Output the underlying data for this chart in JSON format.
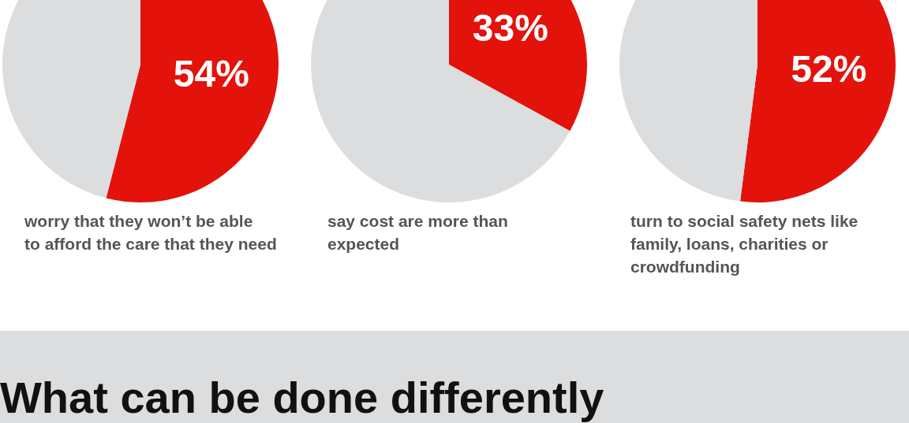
{
  "chart_data": [
    {
      "type": "pie",
      "categories": [
        null,
        null
      ],
      "values": [
        54,
        46
      ],
      "colors": [
        "#e3120b",
        "#dcdddf"
      ],
      "value_labels": [
        "54%",
        null
      ],
      "annotations": [
        "worry that they won’t be able to afford the care that they need"
      ]
    },
    {
      "type": "pie",
      "categories": [
        null,
        null
      ],
      "values": [
        33,
        67
      ],
      "colors": [
        "#e3120b",
        "#dcdddf"
      ],
      "value_labels": [
        "33%",
        null
      ],
      "annotations": [
        "say cost are more than expected"
      ]
    },
    {
      "type": "pie",
      "categories": [
        null,
        null
      ],
      "values": [
        52,
        48
      ],
      "colors": [
        "#e3120b",
        "#dcdddf"
      ],
      "value_labels": [
        "52%",
        null
      ],
      "annotations": [
        "turn to social safety nets like family, loans, charities or crowdfunding"
      ]
    },
    {
      "type": "other",
      "title": "What can be done differently"
    }
  ]
}
